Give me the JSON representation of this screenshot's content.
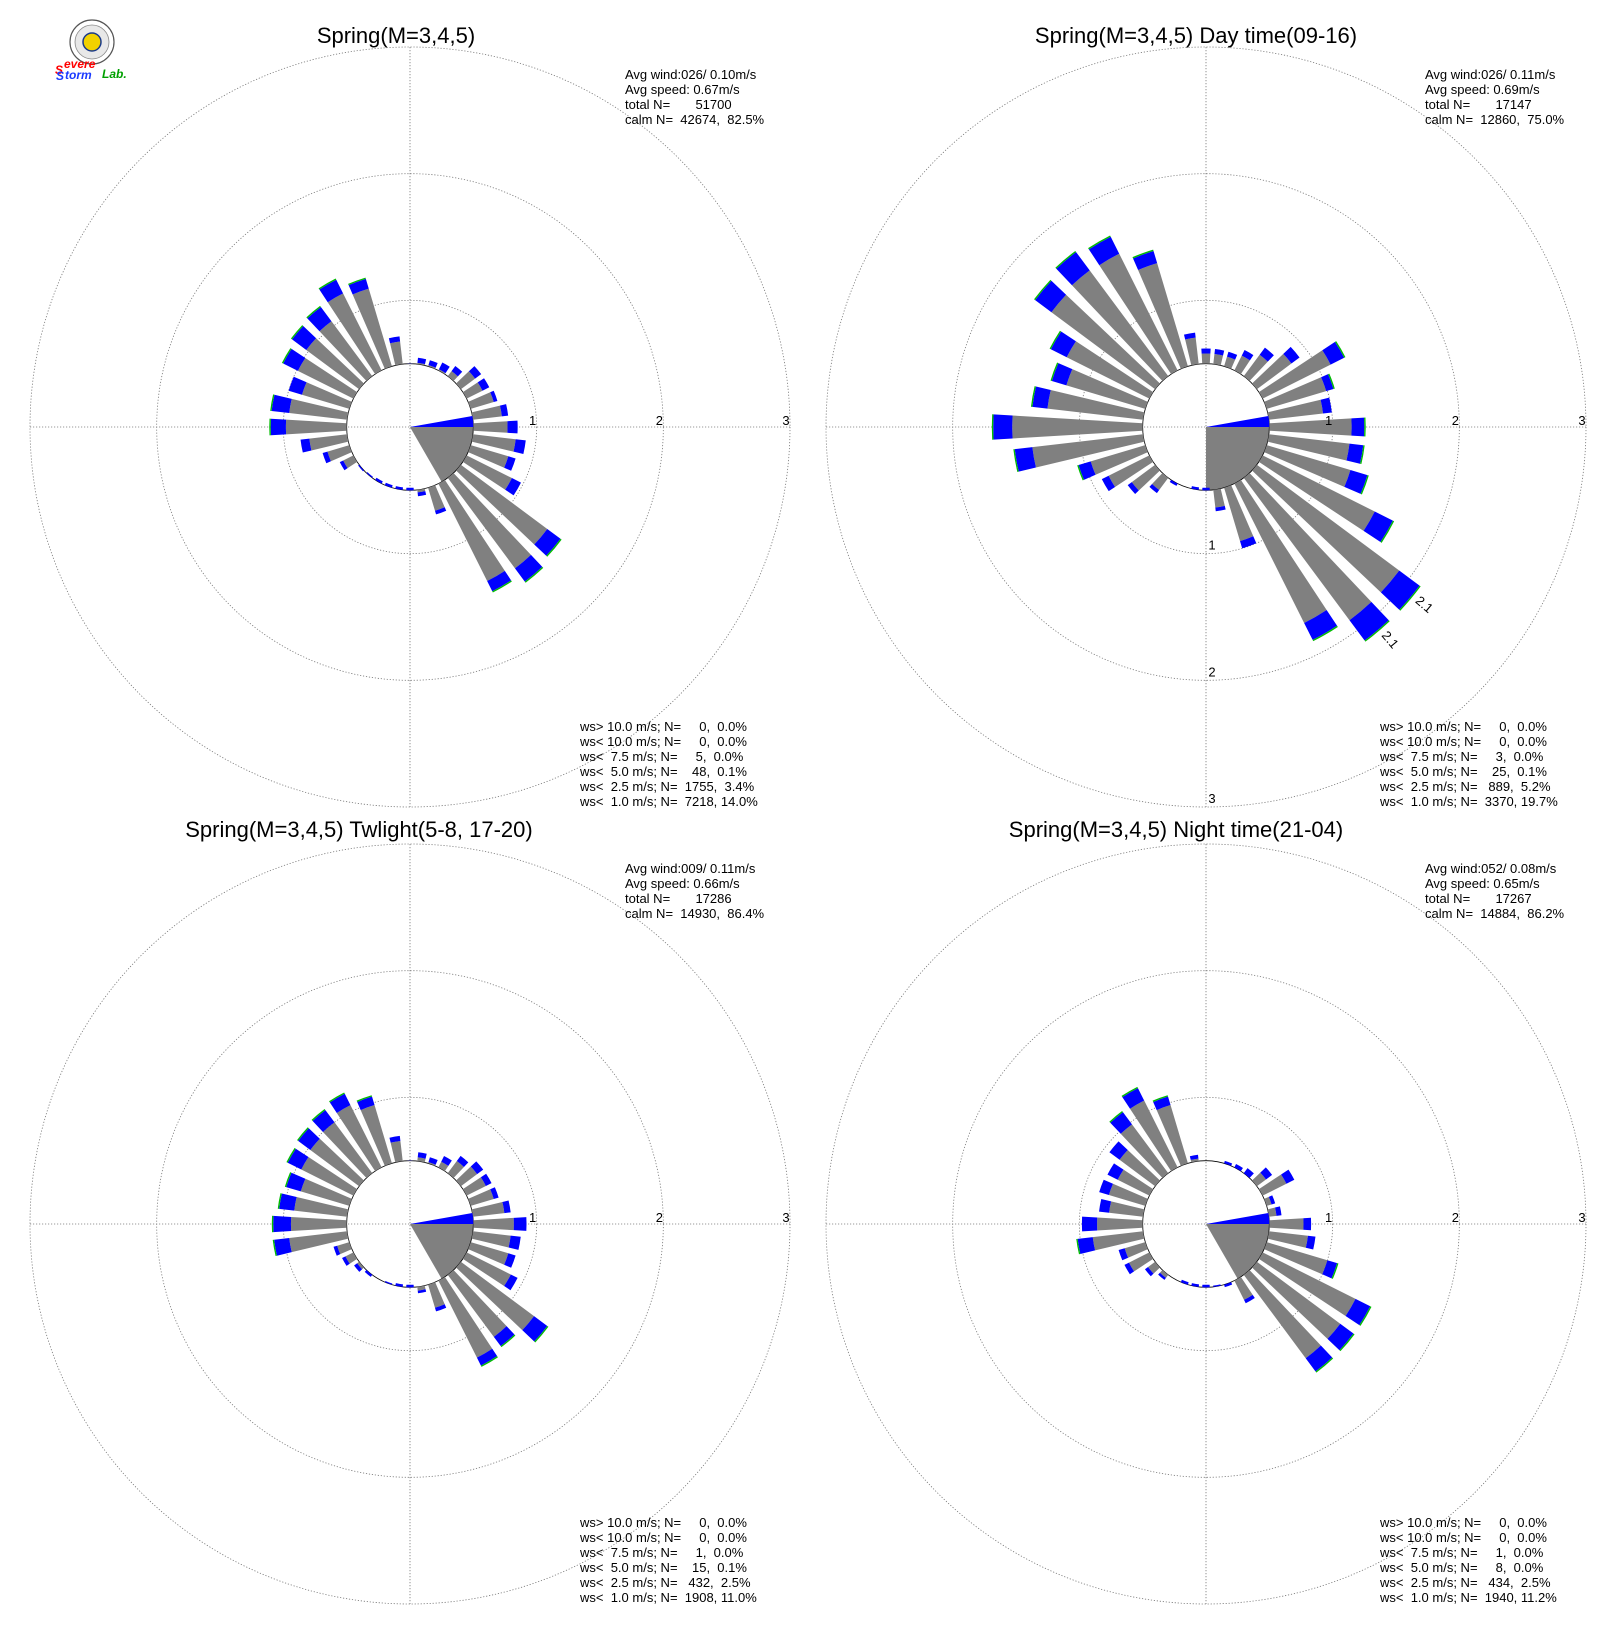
{
  "logo": {
    "letters": [
      "S",
      "evere",
      "S",
      "torm",
      "Lab."
    ]
  },
  "chart_data": [
    {
      "type": "polar-bar",
      "title": "Spring(M=3,4,5)",
      "stats": [
        "Avg wind:026/ 0.10m/s",
        "Avg speed: 0.67m/s",
        "total N=       51700",
        "calm N=  42674,  82.5%"
      ],
      "ring_labels": [
        "1",
        "2",
        "3"
      ],
      "rmax": 3,
      "legend": [
        {
          "text": "ws> 10.0 m/s; N=     0,  0.0%",
          "color": "#a020f0"
        },
        {
          "text": "ws< 10.0 m/s; N=     0,  0.0%",
          "color": "#ff0000"
        },
        {
          "text": "ws<  7.5 m/s; N=     5,  0.0%",
          "color": "#ff8c00"
        },
        {
          "text": "ws<  5.0 m/s; N=    48,  0.1%",
          "color": "#00bb00"
        },
        {
          "text": "ws<  2.5 m/s; N=  1755,  3.4%",
          "color": "#0000ff"
        },
        {
          "text": "ws<  1.0 m/s; N=  7218, 14.0%",
          "color": "#888888"
        }
      ],
      "bars": [
        [
          0,
          0.5,
          0.04
        ],
        [
          10,
          0.55,
          0.04
        ],
        [
          20,
          0.55,
          0.04
        ],
        [
          30,
          0.57,
          0.06
        ],
        [
          40,
          0.6,
          0.05
        ],
        [
          50,
          0.7,
          0.06
        ],
        [
          60,
          0.7,
          0.06
        ],
        [
          70,
          0.72,
          0.03
        ],
        [
          80,
          0.78,
          0.05
        ],
        [
          90,
          0.85,
          0.08
        ],
        [
          100,
          0.92,
          0.08
        ],
        [
          110,
          0.87,
          0.06
        ],
        [
          120,
          0.98,
          0.08
        ],
        [
          130,
          1.48,
          0.13
        ],
        [
          140,
          1.52,
          0.13
        ],
        [
          150,
          1.45,
          0.09
        ],
        [
          160,
          0.72,
          0.03
        ],
        [
          170,
          0.55,
          0.03
        ],
        [
          180,
          0.48,
          0.01
        ],
        [
          190,
          0.48,
          0.01
        ],
        [
          200,
          0.48,
          0.01
        ],
        [
          210,
          0.48,
          0.01
        ],
        [
          220,
          0.49,
          0.02
        ],
        [
          230,
          0.51,
          0.02
        ],
        [
          240,
          0.62,
          0.03
        ],
        [
          250,
          0.72,
          0.04
        ],
        [
          260,
          0.87,
          0.07
        ],
        [
          270,
          1.1,
          0.12
        ],
        [
          280,
          1.1,
          0.14
        ],
        [
          290,
          1.0,
          0.11
        ],
        [
          300,
          1.12,
          0.13
        ],
        [
          310,
          1.16,
          0.14
        ],
        [
          320,
          1.18,
          0.14
        ],
        [
          330,
          1.3,
          0.12
        ],
        [
          340,
          1.22,
          0.08
        ],
        [
          350,
          0.72,
          0.04
        ]
      ],
      "wedge": [
        90,
        150,
        0.5
      ],
      "arrow": [
        0.5,
        0.05
      ]
    },
    {
      "type": "polar-bar",
      "title": "Spring(M=3,4,5) Day time(09-16)",
      "stats": [
        "Avg wind:026/ 0.11m/s",
        "Avg speed: 0.69m/s",
        "total N=       17147",
        "calm N=  12860,  75.0%"
      ],
      "ring_labels": [
        "1",
        "2",
        "3"
      ],
      "rmax": 3,
      "legend": [
        {
          "text": "ws> 10.0 m/s; N=     0,  0.0%",
          "color": "#a020f0"
        },
        {
          "text": "ws< 10.0 m/s; N=     0,  0.0%",
          "color": "#ff0000"
        },
        {
          "text": "ws<  7.5 m/s; N=     3,  0.0%",
          "color": "#ff8c00"
        },
        {
          "text": "ws<  5.0 m/s; N=    25,  0.1%",
          "color": "#00bb00"
        },
        {
          "text": "ws<  2.5 m/s; N=   889,  5.2%",
          "color": "#0000ff"
        },
        {
          "text": "ws<  1.0 m/s; N=  3370, 19.7%",
          "color": "#888888"
        }
      ],
      "outer_labels": [
        "2.1",
        "2.1"
      ],
      "bars": [
        [
          0,
          0.62,
          0.04
        ],
        [
          10,
          0.62,
          0.04
        ],
        [
          20,
          0.62,
          0.04
        ],
        [
          30,
          0.68,
          0.05
        ],
        [
          40,
          0.78,
          0.07
        ],
        [
          50,
          0.92,
          0.08
        ],
        [
          60,
          1.22,
          0.12
        ],
        [
          70,
          1.05,
          0.06
        ],
        [
          80,
          1.0,
          0.07
        ],
        [
          90,
          1.25,
          0.1
        ],
        [
          100,
          1.25,
          0.11
        ],
        [
          110,
          1.33,
          0.14
        ],
        [
          120,
          1.65,
          0.16
        ],
        [
          130,
          2.1,
          0.2
        ],
        [
          140,
          2.1,
          0.2
        ],
        [
          150,
          1.88,
          0.15
        ],
        [
          160,
          1.0,
          0.06
        ],
        [
          170,
          0.67,
          0.03
        ],
        [
          180,
          0.48,
          0.01
        ],
        [
          190,
          0.48,
          0.01
        ],
        [
          200,
          0.5,
          0.01
        ],
        [
          210,
          0.52,
          0.02
        ],
        [
          220,
          0.65,
          0.03
        ],
        [
          230,
          0.77,
          0.04
        ],
        [
          240,
          0.92,
          0.06
        ],
        [
          250,
          1.05,
          0.1
        ],
        [
          260,
          1.52,
          0.14
        ],
        [
          270,
          1.68,
          0.15
        ],
        [
          280,
          1.38,
          0.12
        ],
        [
          290,
          1.27,
          0.12
        ],
        [
          300,
          1.37,
          0.14
        ],
        [
          310,
          1.68,
          0.16
        ],
        [
          320,
          1.72,
          0.18
        ],
        [
          330,
          1.68,
          0.15
        ],
        [
          340,
          1.45,
          0.1
        ],
        [
          350,
          0.75,
          0.04
        ]
      ],
      "wedge": [
        90,
        180,
        0.5
      ],
      "arrow": [
        0.5,
        0.05
      ]
    },
    {
      "type": "polar-bar",
      "title": "Spring(M=3,4,5) Twlight(5-8, 17-20)",
      "stats": [
        "Avg wind:009/ 0.11m/s",
        "Avg speed: 0.66m/s",
        "total N=       17286",
        "calm N=  14930,  86.4%"
      ],
      "ring_labels": [
        "1",
        "2",
        "3"
      ],
      "rmax": 3,
      "legend": [
        {
          "text": "ws> 10.0 m/s; N=     0,  0.0%",
          "color": "#a020f0"
        },
        {
          "text": "ws< 10.0 m/s; N=     0,  0.0%",
          "color": "#ff0000"
        },
        {
          "text": "ws<  7.5 m/s; N=     1,  0.0%",
          "color": "#ff8c00"
        },
        {
          "text": "ws<  5.0 m/s; N=    15,  0.1%",
          "color": "#00bb00"
        },
        {
          "text": "ws<  2.5 m/s; N=   432,  2.5%",
          "color": "#0000ff"
        },
        {
          "text": "ws<  1.0 m/s; N=  1908, 11.0%",
          "color": "#888888"
        }
      ],
      "bars": [
        [
          0,
          0.5,
          0.04
        ],
        [
          10,
          0.57,
          0.04
        ],
        [
          20,
          0.55,
          0.04
        ],
        [
          30,
          0.6,
          0.05
        ],
        [
          40,
          0.67,
          0.05
        ],
        [
          50,
          0.72,
          0.06
        ],
        [
          60,
          0.72,
          0.05
        ],
        [
          70,
          0.73,
          0.04
        ],
        [
          80,
          0.8,
          0.05
        ],
        [
          90,
          0.92,
          0.1
        ],
        [
          100,
          0.88,
          0.08
        ],
        [
          110,
          0.87,
          0.06
        ],
        [
          120,
          0.95,
          0.06
        ],
        [
          130,
          1.35,
          0.13
        ],
        [
          140,
          1.2,
          0.09
        ],
        [
          150,
          1.25,
          0.07
        ],
        [
          160,
          0.72,
          0.03
        ],
        [
          170,
          0.55,
          0.02
        ],
        [
          180,
          0.48,
          0.01
        ],
        [
          190,
          0.48,
          0.01
        ],
        [
          200,
          0.49,
          0.01
        ],
        [
          210,
          0.5,
          0.01
        ],
        [
          220,
          0.52,
          0.02
        ],
        [
          230,
          0.55,
          0.03
        ],
        [
          240,
          0.6,
          0.03
        ],
        [
          250,
          0.63,
          0.03
        ],
        [
          260,
          1.08,
          0.12
        ],
        [
          270,
          1.08,
          0.14
        ],
        [
          280,
          1.04,
          0.12
        ],
        [
          290,
          1.02,
          0.12
        ],
        [
          300,
          1.08,
          0.12
        ],
        [
          310,
          1.1,
          0.12
        ],
        [
          320,
          1.12,
          0.12
        ],
        [
          330,
          1.15,
          0.1
        ],
        [
          340,
          1.05,
          0.07
        ],
        [
          350,
          0.7,
          0.04
        ]
      ],
      "wedge": [
        90,
        150,
        0.5
      ],
      "arrow": [
        0.5,
        0.04
      ]
    },
    {
      "type": "polar-bar",
      "title": "Spring(M=3,4,5) Night time(21-04)",
      "stats": [
        "Avg wind:052/ 0.08m/s",
        "Avg speed: 0.65m/s",
        "total N=       17267",
        "calm N=  14884,  86.2%"
      ],
      "ring_labels": [
        "1",
        "2",
        "3"
      ],
      "rmax": 3,
      "legend": [
        {
          "text": "ws> 10.0 m/s; N=     0,  0.0%",
          "color": "#a020f0"
        },
        {
          "text": "ws< 10.0 m/s; N=     0,  0.0%",
          "color": "#ff0000"
        },
        {
          "text": "ws<  7.5 m/s; N=     1,  0.0%",
          "color": "#ff8c00"
        },
        {
          "text": "ws<  5.0 m/s; N=     8,  0.0%",
          "color": "#00bb00"
        },
        {
          "text": "ws<  2.5 m/s; N=   434,  2.5%",
          "color": "#0000ff"
        },
        {
          "text": "ws<  1.0 m/s; N=  1940, 11.2%",
          "color": "#888888"
        }
      ],
      "bars": [
        [
          0,
          0.5,
          0.03
        ],
        [
          10,
          0.5,
          0.03
        ],
        [
          20,
          0.52,
          0.03
        ],
        [
          30,
          0.53,
          0.04
        ],
        [
          40,
          0.55,
          0.05
        ],
        [
          50,
          0.65,
          0.06
        ],
        [
          60,
          0.78,
          0.07
        ],
        [
          70,
          0.57,
          0.03
        ],
        [
          80,
          0.6,
          0.04
        ],
        [
          90,
          0.83,
          0.06
        ],
        [
          100,
          0.87,
          0.06
        ],
        [
          110,
          1.08,
          0.08
        ],
        [
          120,
          1.45,
          0.13
        ],
        [
          130,
          1.45,
          0.13
        ],
        [
          140,
          1.45,
          0.13
        ],
        [
          150,
          0.7,
          0.03
        ],
        [
          160,
          0.52,
          0.02
        ],
        [
          170,
          0.49,
          0.01
        ],
        [
          180,
          0.48,
          0.01
        ],
        [
          190,
          0.48,
          0.01
        ],
        [
          200,
          0.48,
          0.01
        ],
        [
          210,
          0.5,
          0.01
        ],
        [
          220,
          0.55,
          0.02
        ],
        [
          230,
          0.6,
          0.03
        ],
        [
          240,
          0.72,
          0.04
        ],
        [
          250,
          0.72,
          0.05
        ],
        [
          260,
          1.02,
          0.12
        ],
        [
          270,
          0.98,
          0.12
        ],
        [
          280,
          0.85,
          0.08
        ],
        [
          290,
          0.88,
          0.08
        ],
        [
          300,
          0.87,
          0.09
        ],
        [
          310,
          0.95,
          0.1
        ],
        [
          320,
          1.1,
          0.12
        ],
        [
          330,
          1.2,
          0.11
        ],
        [
          340,
          1.05,
          0.07
        ],
        [
          350,
          0.55,
          0.03
        ]
      ],
      "wedge": [
        90,
        150,
        0.5
      ],
      "arrow": [
        0.5,
        0.06
      ]
    }
  ]
}
